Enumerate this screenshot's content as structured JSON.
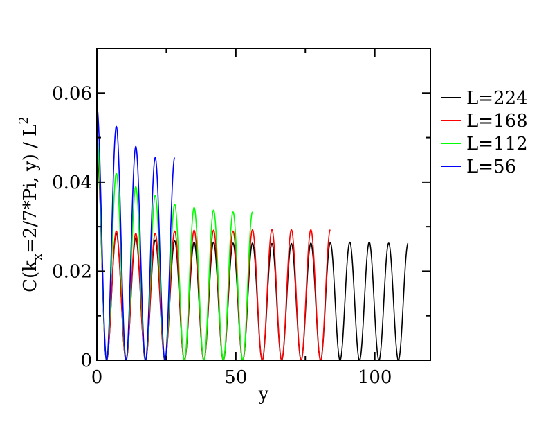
{
  "chart_data": {
    "type": "line",
    "xlabel": "y",
    "ylabel": {
      "main": "C(k",
      "sub": "x",
      "rest": "=2/7*Pi, y) / L",
      "sup": "2"
    },
    "xlim": [
      0,
      120
    ],
    "ylim": [
      0,
      0.07
    ],
    "x_ticks": [
      0,
      50,
      100
    ],
    "x_tick_labels": [
      "0",
      "50",
      "100"
    ],
    "y_ticks": [
      0,
      0.02,
      0.04,
      0.06
    ],
    "y_tick_labels": [
      "0",
      "0.02",
      "0.04",
      "0.06"
    ],
    "grid": false,
    "legend_position": "right",
    "period": 7,
    "series": [
      {
        "name": "L=224",
        "color": "#000000",
        "x_max": 112,
        "peaks": [
          0.047,
          0.0285,
          0.0275,
          0.027,
          0.0268,
          0.0265,
          0.0265,
          0.0263,
          0.0263,
          0.0262,
          0.0262,
          0.0263,
          0.0264,
          0.0265,
          0.0265,
          0.0263
        ]
      },
      {
        "name": "L=168",
        "color": "#ff0000",
        "x_max": 84,
        "peaks": [
          0.049,
          0.029,
          0.0285,
          0.0285,
          0.029,
          0.0292,
          0.0292,
          0.029,
          0.0293,
          0.0293,
          0.0293,
          0.0293
        ]
      },
      {
        "name": "L=112",
        "color": "#00ff00",
        "x_max": 56,
        "peaks": [
          0.05,
          0.042,
          0.039,
          0.037,
          0.035,
          0.0343,
          0.0337,
          0.0333
        ]
      },
      {
        "name": "L=56",
        "color": "#0000ff",
        "x_max": 28,
        "peaks": [
          0.057,
          0.0525,
          0.048,
          0.0455
        ]
      }
    ]
  }
}
